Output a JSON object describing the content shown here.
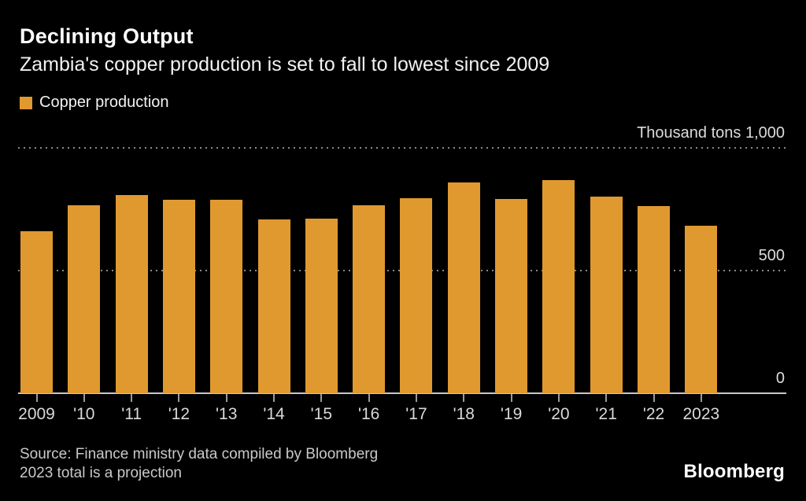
{
  "header": {
    "title": "Declining Output",
    "subtitle": "Zambia's copper production is set to fall to lowest since 2009"
  },
  "legend": {
    "label": "Copper production",
    "swatch_color": "#E0992F"
  },
  "chart_data": {
    "type": "bar",
    "title": "Declining Output",
    "subtitle": "Zambia's copper production is set to fall to lowest since 2009",
    "unit_label": "Thousand tons",
    "categories": [
      "2009",
      "'10",
      "'11",
      "'12",
      "'13",
      "'14",
      "'15",
      "'16",
      "'17",
      "'18",
      "'19",
      "'20",
      "'21",
      "'22",
      "2023"
    ],
    "series": [
      {
        "name": "Copper production",
        "values": [
          660,
          765,
          808,
          790,
          790,
          708,
          712,
          766,
          795,
          858,
          792,
          868,
          802,
          763,
          684
        ]
      }
    ],
    "ylim": [
      0,
      1000
    ],
    "yticks": [
      0,
      500,
      1000
    ],
    "ytick_labels": [
      "0",
      "500",
      "Thousand tons 1,000"
    ],
    "legend_position": "top-left",
    "grid": "horizontal-dotted",
    "bar_color": "#E0992F",
    "note": "2023 total is a projection"
  },
  "footer": {
    "source_line1": "Source: Finance ministry data compiled by Bloomberg",
    "source_line2": "2023 total is a projection",
    "brand": "Bloomberg"
  },
  "colors": {
    "background": "#000000",
    "bar": "#E0992F",
    "title_text": "#FFFFFF",
    "axis_text": "#D9D9D9",
    "gridline": "#8A8A8A",
    "baseline": "#C8C8C8",
    "source_text": "#C9C9C9"
  }
}
